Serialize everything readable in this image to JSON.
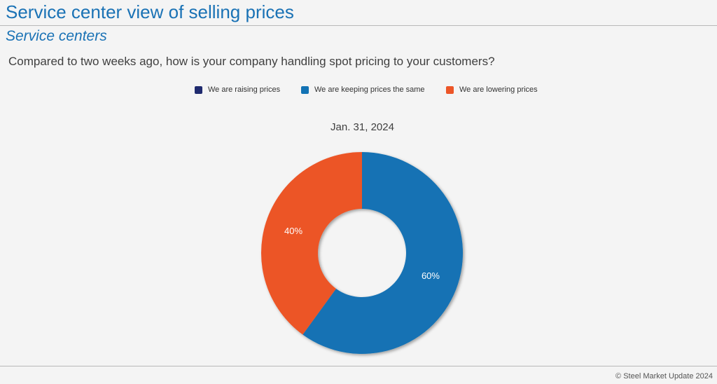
{
  "header": {
    "title": "Service center view of selling prices",
    "subtitle": "Service centers",
    "question": "Compared to two weeks ago, how is your company handling spot pricing to your customers?"
  },
  "chart_data": {
    "type": "pie",
    "title": "Jan. 31, 2024",
    "donut": true,
    "legend_position": "top",
    "series": [
      {
        "name": "We are raising prices",
        "value": 0,
        "label": "",
        "color": "#1f2a6e"
      },
      {
        "name": "We are keeping prices the same",
        "value": 60,
        "label": "60%",
        "color": "#1272b4"
      },
      {
        "name": "We are lowering prices",
        "value": 40,
        "label": "40%",
        "color": "#ec5527"
      }
    ]
  },
  "footer": {
    "copyright": "© Steel Market Update 2024"
  }
}
